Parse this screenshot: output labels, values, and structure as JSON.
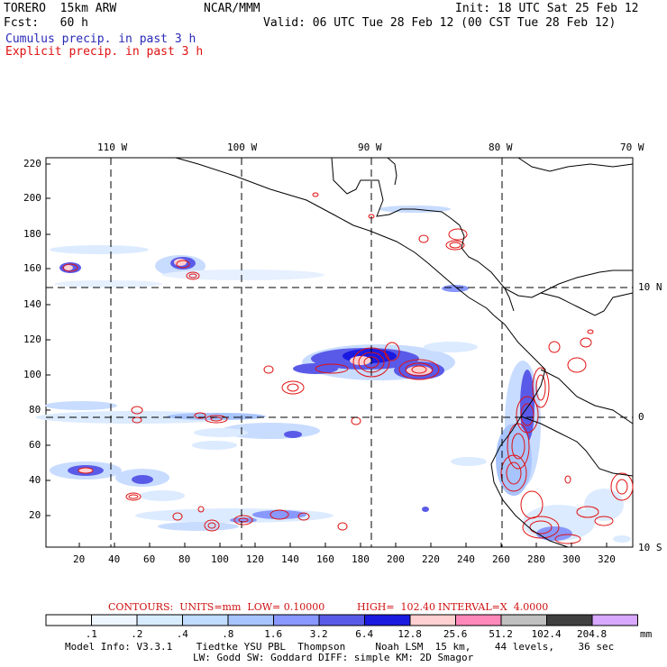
{
  "header": {
    "model": "TORERO  15km ARW",
    "org": "NCAR/MMM",
    "init": "Init: 18 UTC Sat 25 Feb 12",
    "fcst": "Fcst:   60 h",
    "valid": "Valid: 06 UTC Tue 28 Feb 12 (00 CST Tue 28 Feb 12)",
    "cumulus": "Cumulus precip. in past 3 h",
    "explicit": "Explicit precip. in past 3 h"
  },
  "map": {
    "lon_labels": [
      "110 W",
      "100 W",
      "90 W",
      "80 W",
      "70 W"
    ],
    "lat_labels": [
      "10 N",
      "0",
      "10 S"
    ],
    "y_ticks": [
      "220",
      "200",
      "180",
      "160",
      "140",
      "120",
      "100",
      "80",
      "60",
      "40",
      "20"
    ],
    "x_ticks": [
      "20",
      "40",
      "60",
      "80",
      "100",
      "120",
      "140",
      "160",
      "180",
      "200",
      "220",
      "240",
      "260",
      "280",
      "300",
      "320"
    ]
  },
  "contours": {
    "label": "CONTOURS:  UNITS=mm  LOW= 0.10000",
    "high": "HIGH=  102.40",
    "interval": "INTERVAL=X  4.0000"
  },
  "colorbar": {
    "labels": [
      ".1",
      ".2",
      ".4",
      ".8",
      "1.6",
      "3.2",
      "6.4",
      "12.8",
      "25.6",
      "51.2",
      "102.4",
      "204.8"
    ],
    "unit": "mm",
    "colors": [
      "#ffffff",
      "#eef6ff",
      "#d8ecff",
      "#c0dcff",
      "#a8c4ff",
      "#8898ff",
      "#5a5ae8",
      "#1a1ae0",
      "#ffd0d0",
      "#ff88bb",
      "#c0c0c0",
      "#404040",
      "#d8a8ff"
    ]
  },
  "model_info": {
    "line1": "Model Info: V3.3.1    Tiedtke YSU PBL  Thompson     Noah LSM  15 km,    44 levels,    36 sec",
    "line2": "LW: Godd SW: Goddard DIFF: simple KM: 2D Smagor"
  }
}
